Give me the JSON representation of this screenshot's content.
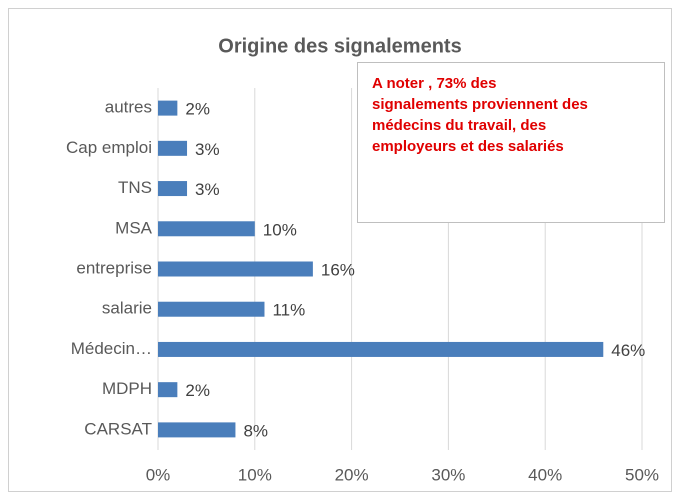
{
  "chart_data": {
    "type": "bar",
    "orientation": "horizontal",
    "title": "Origine des signalements",
    "categories": [
      "autres",
      "Cap emploi",
      "TNS",
      "MSA",
      "entreprise",
      "salarie",
      "Médecin…",
      "MDPH",
      "CARSAT"
    ],
    "values": [
      2,
      3,
      3,
      10,
      16,
      11,
      46,
      2,
      8
    ],
    "value_labels": [
      "2%",
      "3%",
      "3%",
      "10%",
      "16%",
      "11%",
      "46%",
      "2%",
      "8%"
    ],
    "color": "#4a7ebb",
    "xlim": [
      0,
      50
    ],
    "xticks": [
      {
        "value": 0,
        "label": "0%"
      },
      {
        "value": 10,
        "label": "10%"
      },
      {
        "value": 20,
        "label": "20%"
      },
      {
        "value": 30,
        "label": "30%"
      },
      {
        "value": 40,
        "label": "40%"
      },
      {
        "value": 50,
        "label": "50%"
      }
    ],
    "grid": true,
    "annotation": [
      "A noter , 73% des",
      "signalements proviennent des",
      "médecins du travail, des",
      "employeurs et des salariés"
    ]
  }
}
